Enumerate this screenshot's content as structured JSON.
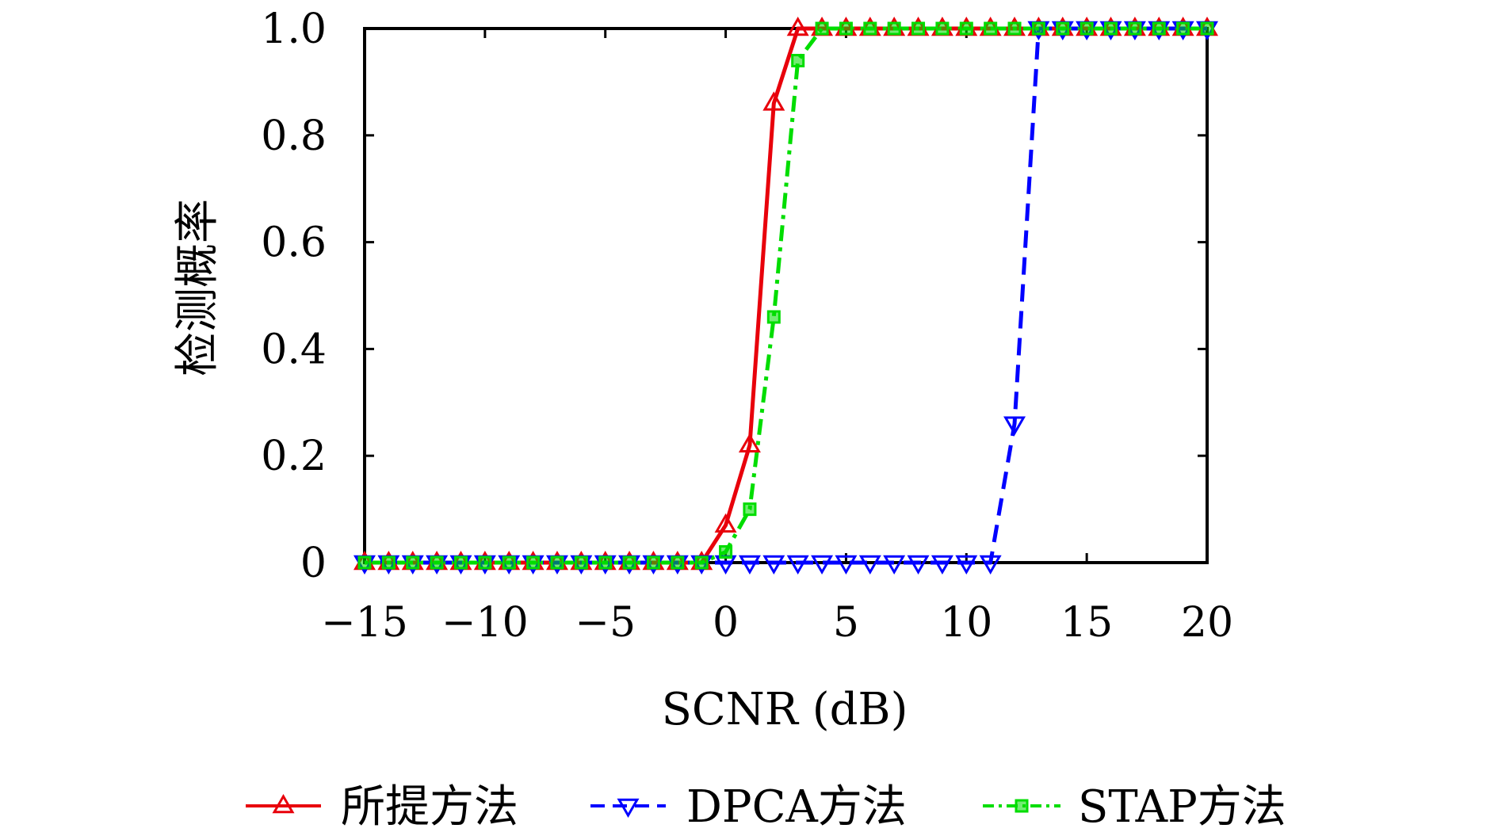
{
  "chart_data": {
    "type": "line",
    "title": "",
    "xlabel": "SCNR (dB)",
    "ylabel": "检测概率",
    "xlim": [
      -15,
      20
    ],
    "ylim": [
      0,
      1
    ],
    "xticks": [
      -15,
      -10,
      -5,
      0,
      5,
      10,
      15,
      20
    ],
    "xtick_labels": [
      "−15",
      "−10",
      "−5",
      "0",
      "5",
      "10",
      "15",
      "20"
    ],
    "yticks": [
      0,
      0.2,
      0.4,
      0.6,
      0.8,
      1.0
    ],
    "ytick_labels": [
      "0",
      "0.2",
      "0.4",
      "0.6",
      "0.8",
      "1.0"
    ],
    "grid": false,
    "legend_position": "bottom",
    "series": [
      {
        "name": "所提方法",
        "color": "#e8000b",
        "line_style": "solid",
        "marker": "triangle-up",
        "x": [
          -15,
          -14,
          -13,
          -12,
          -11,
          -10,
          -9,
          -8,
          -7,
          -6,
          -5,
          -4,
          -3,
          -2,
          -1,
          0,
          1,
          2,
          3,
          4,
          5,
          6,
          7,
          8,
          9,
          10,
          11,
          12,
          13,
          14,
          15,
          16,
          17,
          18,
          19,
          20
        ],
        "y": [
          0,
          0,
          0,
          0,
          0,
          0,
          0,
          0,
          0,
          0,
          0,
          0,
          0,
          0,
          0,
          0.07,
          0.22,
          0.86,
          1,
          1,
          1,
          1,
          1,
          1,
          1,
          1,
          1,
          1,
          1,
          1,
          1,
          1,
          1,
          1,
          1,
          1
        ]
      },
      {
        "name": "DPCA方法",
        "color": "#0000ff",
        "line_style": "dashed",
        "marker": "triangle-down",
        "x": [
          -15,
          -14,
          -13,
          -12,
          -11,
          -10,
          -9,
          -8,
          -7,
          -6,
          -5,
          -4,
          -3,
          -2,
          -1,
          0,
          1,
          2,
          3,
          4,
          5,
          6,
          7,
          8,
          9,
          10,
          11,
          12,
          13,
          14,
          15,
          16,
          17,
          18,
          19,
          20
        ],
        "y": [
          0,
          0,
          0,
          0,
          0,
          0,
          0,
          0,
          0,
          0,
          0,
          0,
          0,
          0,
          0,
          0,
          0,
          0,
          0,
          0,
          0,
          0,
          0,
          0,
          0,
          0,
          0,
          0.26,
          1,
          1,
          1,
          1,
          1,
          1,
          1,
          1
        ]
      },
      {
        "name": "STAP方法",
        "color": "#00dd00",
        "line_style": "dashdot",
        "marker": "square",
        "x": [
          -15,
          -14,
          -13,
          -12,
          -11,
          -10,
          -9,
          -8,
          -7,
          -6,
          -5,
          -4,
          -3,
          -2,
          -1,
          0,
          1,
          2,
          3,
          4,
          5,
          6,
          7,
          8,
          9,
          10,
          11,
          12,
          13,
          14,
          15,
          16,
          17,
          18,
          19,
          20
        ],
        "y": [
          0,
          0,
          0,
          0,
          0,
          0,
          0,
          0,
          0,
          0,
          0,
          0,
          0,
          0,
          0,
          0.02,
          0.1,
          0.46,
          0.94,
          1,
          1,
          1,
          1,
          1,
          1,
          1,
          1,
          1,
          1,
          1,
          1,
          1,
          1,
          1,
          1,
          1
        ]
      }
    ]
  }
}
